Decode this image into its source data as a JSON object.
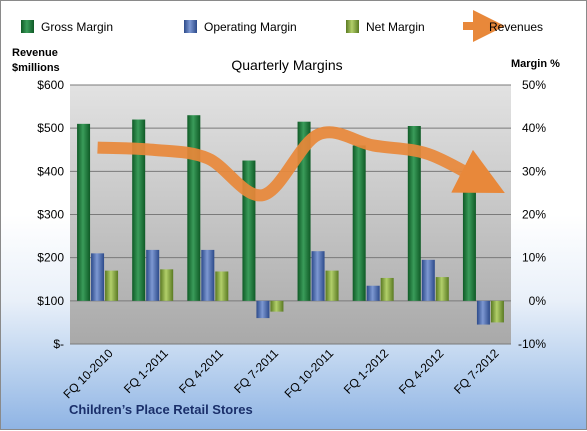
{
  "chart_data": {
    "type": "bar",
    "title": "Quarterly Margins",
    "left_axis_label_line1": "Revenue",
    "left_axis_label_line2": "$millions",
    "right_axis_label": "Margin %",
    "footer": "Children’s Place Retail Stores",
    "categories": [
      "FQ 10-2010",
      "FQ 1-2011",
      "FQ 4-2011",
      "FQ 7-2011",
      "FQ 10-2011",
      "FQ 1-2012",
      "FQ 4-2012",
      "FQ 7-2012"
    ],
    "left_ticks": [
      "$-",
      "$100",
      "$200",
      "$300",
      "$400",
      "$500",
      "$600"
    ],
    "right_ticks": [
      "-10%",
      "0%",
      "10%",
      "20%",
      "30%",
      "40%",
      "50%"
    ],
    "ylim_left": [
      0,
      600
    ],
    "ylim_right": [
      -10,
      50
    ],
    "grid": true,
    "legend_position": "top",
    "series": [
      {
        "name": "Gross Margin",
        "axis": "right",
        "kind": "bar",
        "color": "#1e7a3c",
        "values": [
          41.0,
          42.0,
          43.0,
          32.5,
          41.5,
          36.0,
          40.5,
          29.0
        ]
      },
      {
        "name": "Operating Margin",
        "axis": "right",
        "kind": "bar",
        "color": "#4a6ab0",
        "values": [
          11.0,
          11.8,
          11.8,
          -4.0,
          11.5,
          3.5,
          9.5,
          -5.5
        ]
      },
      {
        "name": "Net Margin",
        "axis": "right",
        "kind": "bar",
        "color": "#7fa63c",
        "values": [
          7.0,
          7.3,
          6.8,
          -2.5,
          7.0,
          5.3,
          5.5,
          -5.0
        ]
      },
      {
        "name": "Revenues",
        "axis": "left",
        "kind": "line",
        "color": "#e8883a",
        "values": [
          455,
          450,
          430,
          345,
          485,
          460,
          440,
          375
        ]
      }
    ]
  }
}
